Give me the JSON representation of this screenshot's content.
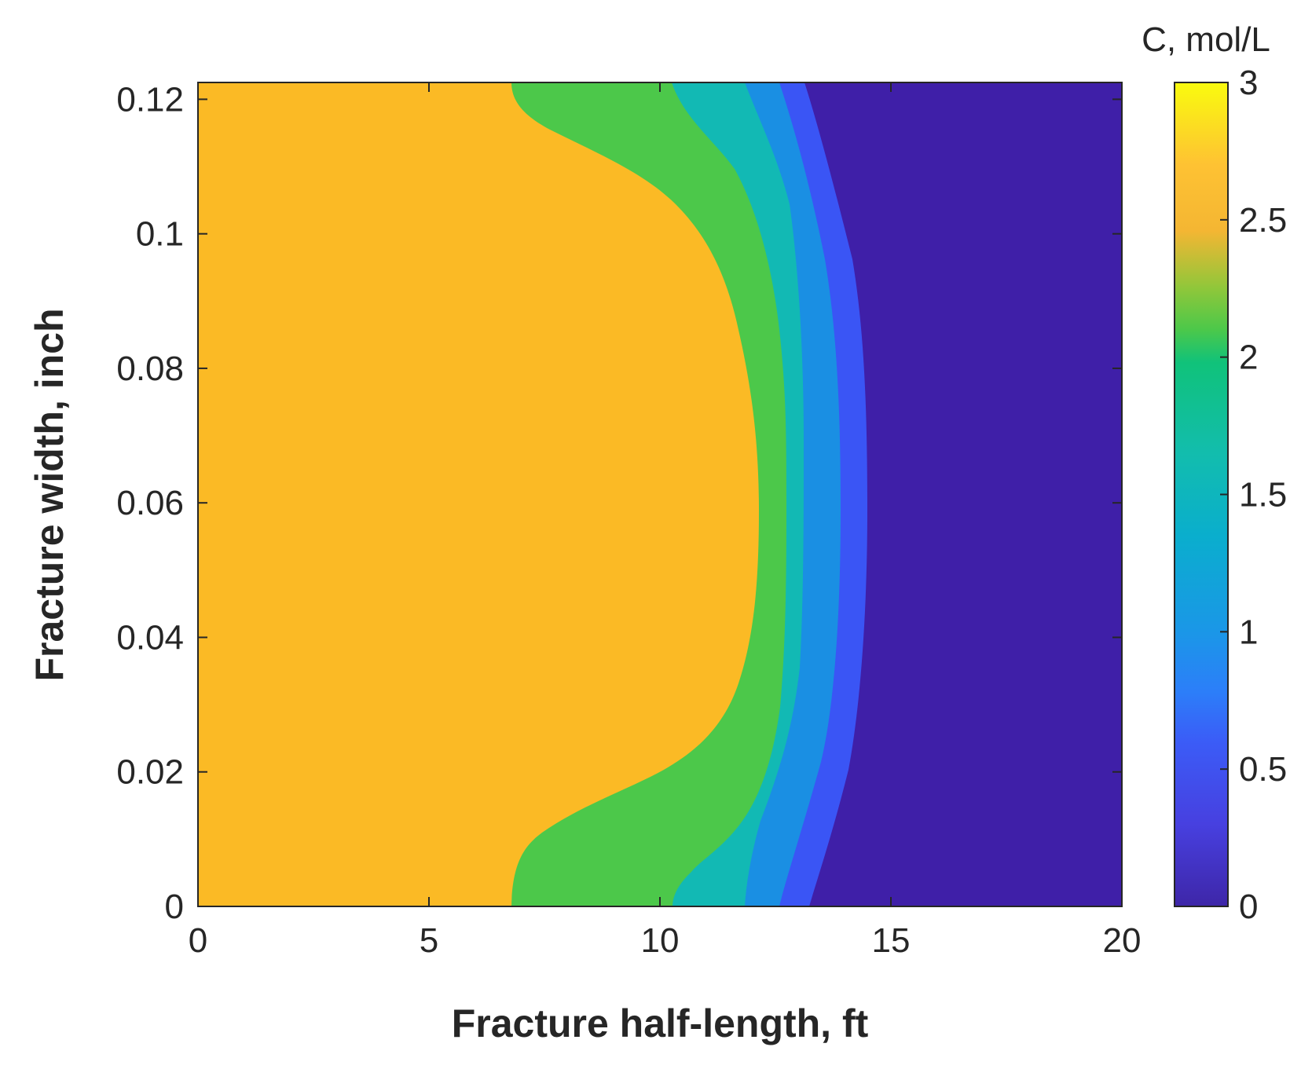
{
  "chart_data": {
    "type": "filled-contour",
    "xlabel": "Fracture half-length, ft",
    "ylabel": "Fracture width, inch",
    "xlim": [
      0,
      20
    ],
    "ylim": [
      0,
      0.1225
    ],
    "xticks": [
      "0",
      "5",
      "10",
      "15",
      "20"
    ],
    "yticks": [
      "0",
      "0.02",
      "0.04",
      "0.06",
      "0.08",
      "0.1",
      "0.12"
    ],
    "colorbar": {
      "title": "C, mol/L",
      "range": [
        0,
        3
      ],
      "ticks": [
        "0",
        "0.5",
        "1",
        "1.5",
        "2",
        "2.5",
        "3"
      ]
    },
    "contour_levels": [
      {
        "level": "0-0.5",
        "color": "#3f1fa8",
        "boundary_x_at_y": {
          "0": 20,
          "0.06": 20,
          "0.1225": 20
        }
      },
      {
        "level": "0.5-1",
        "color": "#3a55f5",
        "boundary_x_at_y": {
          "0": 14.5,
          "0.06": 14.6,
          "0.1225": 13.2
        }
      },
      {
        "level": "1-1.5",
        "color": "#1a8fe3",
        "boundary_x_at_y": {
          "0": 13.2,
          "0.06": 13.9,
          "0.1225": 12.9
        }
      },
      {
        "level": "1.5-2",
        "color": "#12b9b4",
        "boundary_x_at_y": {
          "0": 12.6,
          "0.06": 13.1,
          "0.1225": 12.1
        }
      },
      {
        "level": "2-2.5",
        "color": "#4cc84a",
        "boundary_x_at_y": {
          "0": 11.8,
          "0.06": 12.3,
          "0.1225": 10.4
        }
      },
      {
        "level": "2.5-3",
        "color": "#fbba25",
        "boundary_x_at_y": {
          "0": 6.9,
          "0.06": 12.3,
          "0.1225": 6.9
        }
      }
    ]
  }
}
